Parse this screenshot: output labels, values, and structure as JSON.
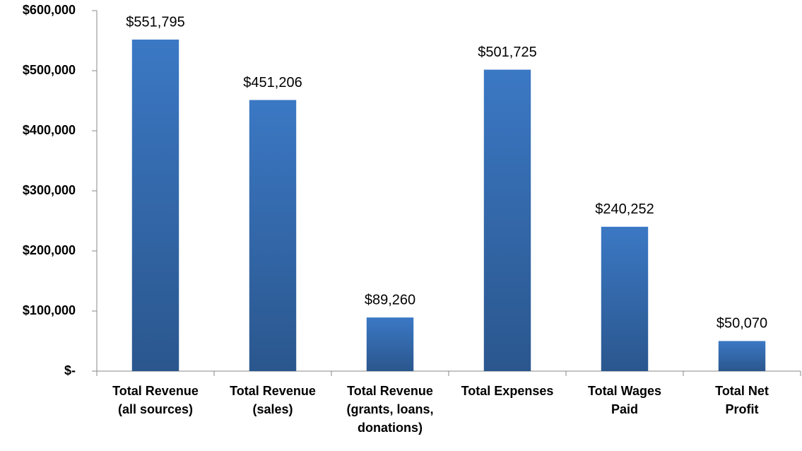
{
  "chart_data": {
    "type": "bar",
    "categories": [
      "Total Revenue\n(all sources)",
      "Total Revenue\n(sales)",
      "Total Revenue\n(grants, loans,\ndonations)",
      "Total Expenses",
      "Total Wages\nPaid",
      "Total Net\nProfit"
    ],
    "values": [
      551795,
      451206,
      89260,
      501725,
      240252,
      50070
    ],
    "value_labels": [
      "$551,795",
      "$451,206",
      "$89,260",
      "$501,725",
      "$240,252",
      "$50,070"
    ],
    "color": "#3b78c4",
    "ylim": [
      0,
      600000
    ],
    "yticks": [
      {
        "value": 0,
        "label": "$-"
      },
      {
        "value": 100000,
        "label": "$100,000"
      },
      {
        "value": 200000,
        "label": "$200,000"
      },
      {
        "value": 300000,
        "label": "$300,000"
      },
      {
        "value": 400000,
        "label": "$400,000"
      },
      {
        "value": 500000,
        "label": "$500,000"
      },
      {
        "value": 600000,
        "label": "$600,000"
      }
    ],
    "grid": false
  }
}
